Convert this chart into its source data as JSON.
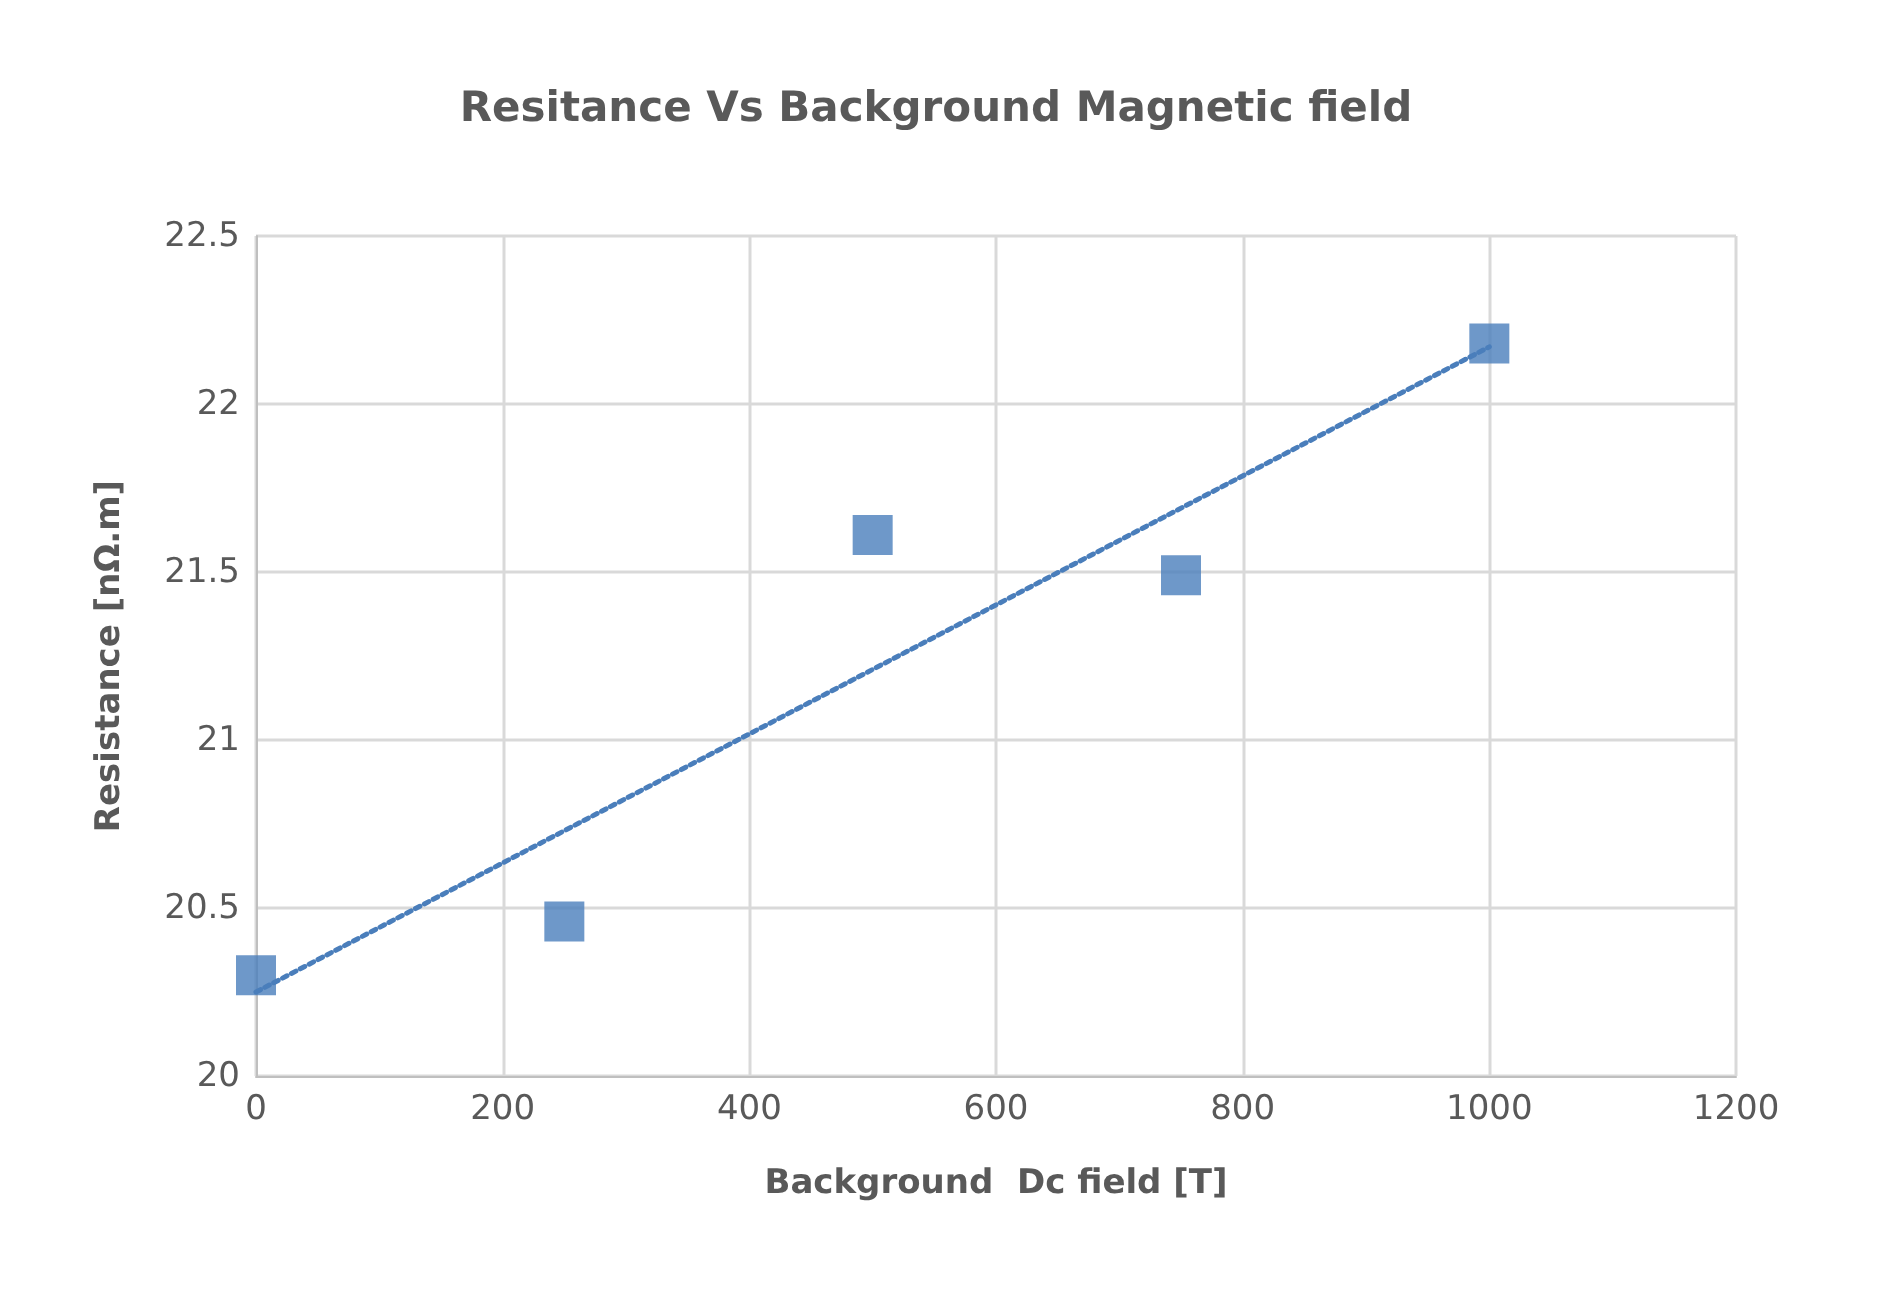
{
  "chart_data": {
    "type": "scatter",
    "title": "Resitance Vs Background Magnetic field",
    "xlabel": "Background  Dc field [T]",
    "ylabel": "Resistance [nΩ.m]",
    "x": [
      0,
      250,
      500,
      750,
      1000
    ],
    "series": [
      {
        "type": "scatter",
        "color": "#4a7ebb",
        "values": [
          20.3,
          20.46,
          21.61,
          21.49,
          22.18
        ],
        "marker": "square"
      },
      {
        "type": "line",
        "color": "#4a7ebb",
        "x": [
          0,
          1000
        ],
        "values": [
          20.25,
          22.17
        ],
        "line_style": "dotted",
        "marker": "none"
      }
    ],
    "xlim": [
      0,
      1200
    ],
    "xticks": [
      0,
      200,
      400,
      600,
      800,
      1000,
      1200
    ],
    "ylim": [
      20,
      22.5
    ],
    "yticks": [
      20,
      20.5,
      21,
      21.5,
      22,
      22.5
    ],
    "grid": true
  }
}
